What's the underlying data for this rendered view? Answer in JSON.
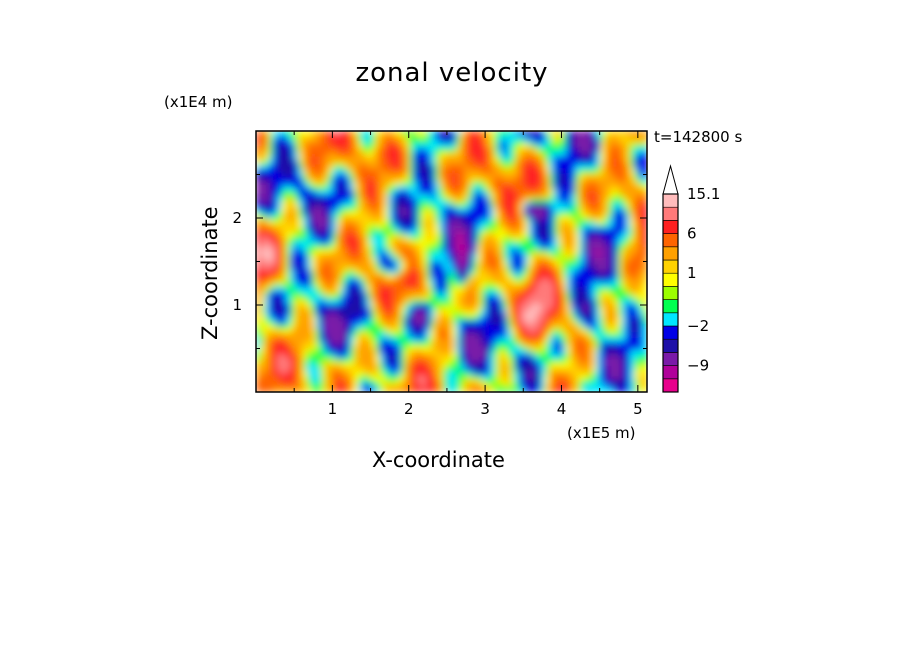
{
  "chart_data": {
    "type": "heatmap",
    "title": "zonal velocity",
    "xlabel": "X-coordinate",
    "ylabel": "Z-coordinate",
    "x_scale_label": "(x1E5 m)",
    "y_scale_label": "(x1E4 m)",
    "time_label": "t=142800 s",
    "x_ticks": [
      1,
      2,
      3,
      4,
      5
    ],
    "y_ticks": [
      1,
      2
    ],
    "xlim": [
      0,
      5.12
    ],
    "ylim": [
      0,
      3.0
    ],
    "colorbar": {
      "labels": [
        {
          "text": "15.1",
          "value": 15.1
        },
        {
          "text": "6",
          "value": 6
        },
        {
          "text": "1",
          "value": 1
        },
        {
          "text": "−2",
          "value": -2
        },
        {
          "text": "−9",
          "value": -9
        }
      ],
      "levels": [
        {
          "color": "#e8008c",
          "lo": -14,
          "hi": -11
        },
        {
          "color": "#b0009a",
          "lo": -11,
          "hi": -9
        },
        {
          "color": "#7a1aa8",
          "lo": -9,
          "hi": -6
        },
        {
          "color": "#1e10a8",
          "lo": -6,
          "hi": -4
        },
        {
          "color": "#0000e6",
          "lo": -4,
          "hi": -2
        },
        {
          "color": "#00e6ff",
          "lo": -2,
          "hi": -1
        },
        {
          "color": "#00ff50",
          "lo": -1,
          "hi": 0
        },
        {
          "color": "#9cff00",
          "lo": 0,
          "hi": 0.5
        },
        {
          "color": "#ffff00",
          "lo": 0.5,
          "hi": 1
        },
        {
          "color": "#ffd200",
          "lo": 1,
          "hi": 2
        },
        {
          "color": "#ffa000",
          "lo": 2,
          "hi": 4
        },
        {
          "color": "#ff6400",
          "lo": 4,
          "hi": 6
        },
        {
          "color": "#ff2020",
          "lo": 6,
          "hi": 9
        },
        {
          "color": "#ff7a7a",
          "lo": 9,
          "hi": 12
        },
        {
          "color": "#ffbcbc",
          "lo": 12,
          "hi": 15.1
        }
      ]
    }
  }
}
